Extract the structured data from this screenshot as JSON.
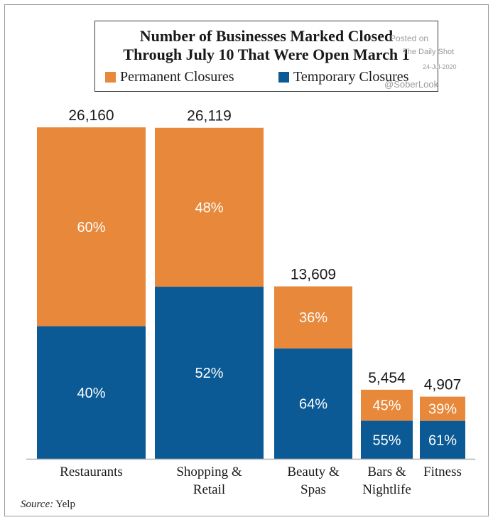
{
  "chart_data": {
    "type": "bar",
    "stacked": true,
    "title_lines": [
      "Number of Businesses Marked Closed",
      "Through July 10 That Were Open March 1"
    ],
    "categories": [
      [
        "Restaurants"
      ],
      [
        "Shopping &",
        "Retail"
      ],
      [
        "Beauty &",
        "Spas"
      ],
      [
        "Bars &",
        "Nightlife"
      ],
      [
        "Fitness"
      ]
    ],
    "totals": [
      26160,
      26119,
      13609,
      5454,
      4907
    ],
    "total_labels": [
      "26,160",
      "26,119",
      "13,609",
      "5,454",
      "4,907"
    ],
    "series": [
      {
        "name": "Temporary Closures",
        "color": "#0b5a95",
        "percent": [
          40,
          52,
          64,
          55,
          61
        ],
        "labels": [
          "40%",
          "52%",
          "64%",
          "55%",
          "61%"
        ]
      },
      {
        "name": "Permanent Closures",
        "color": "#e8883a",
        "percent": [
          60,
          48,
          36,
          45,
          39
        ],
        "labels": [
          "60%",
          "48%",
          "36%",
          "45%",
          "39%"
        ]
      }
    ],
    "legend": {
      "placement": "top",
      "order": [
        "Permanent Closures",
        "Temporary Closures"
      ]
    },
    "grid": false,
    "ylim": [
      0,
      26160
    ]
  },
  "source": {
    "prefix": "Source:",
    "text": "Yelp"
  },
  "watermark": {
    "line1": "Posted on",
    "line2": "The Daily Shot",
    "date": "24-Jul-2020",
    "handle": "@SoberLook"
  }
}
